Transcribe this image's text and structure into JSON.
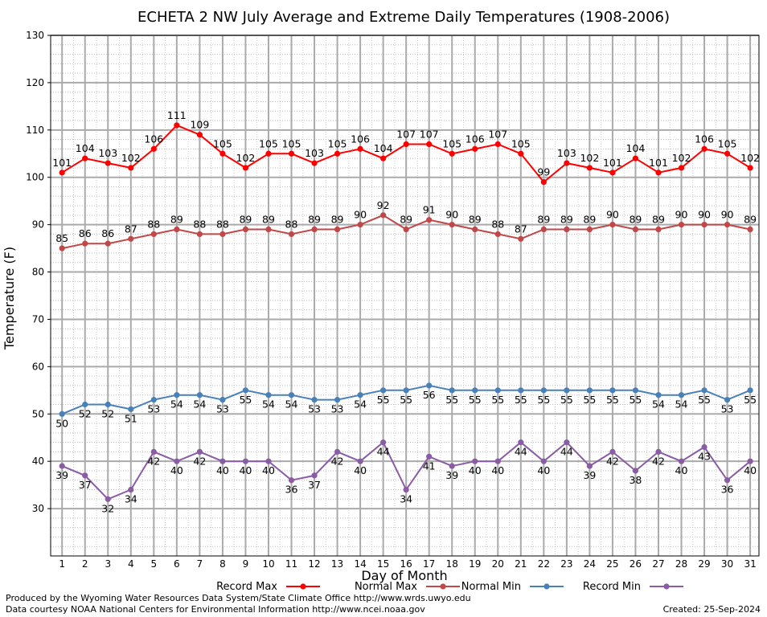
{
  "chart_data": {
    "type": "line",
    "title": "ECHETA 2 NW July Average and Extreme Daily Temperatures (1908-2006)",
    "xlabel": "Day of Month",
    "ylabel": "Temperature (F)",
    "ylim": [
      20,
      130
    ],
    "y_ticks": [
      30,
      40,
      50,
      60,
      70,
      80,
      90,
      100,
      110,
      120,
      130
    ],
    "x": [
      1,
      2,
      3,
      4,
      5,
      6,
      7,
      8,
      9,
      10,
      11,
      12,
      13,
      14,
      15,
      16,
      17,
      18,
      19,
      20,
      21,
      22,
      23,
      24,
      25,
      26,
      27,
      28,
      29,
      30,
      31
    ],
    "grid": true,
    "legend_placement": "bottom",
    "series": [
      {
        "name": "Record Max",
        "color": "#ff0000",
        "values": [
          101,
          104,
          103,
          102,
          106,
          111,
          109,
          105,
          102,
          105,
          105,
          103,
          105,
          106,
          104,
          107,
          107,
          105,
          106,
          107,
          105,
          99,
          103,
          102,
          101,
          104,
          101,
          102,
          106,
          105,
          102
        ],
        "label_position": "above"
      },
      {
        "name": "Normal Max",
        "color": "#c04848",
        "values": [
          85,
          86,
          86,
          87,
          88,
          89,
          88,
          88,
          89,
          89,
          88,
          89,
          89,
          90,
          92,
          89,
          91,
          90,
          89,
          88,
          87,
          89,
          89,
          89,
          90,
          89,
          89,
          90,
          90,
          90,
          89
        ],
        "label_position": "above"
      },
      {
        "name": "Normal Min",
        "color": "#4a80b8",
        "values": [
          50,
          52,
          52,
          51,
          53,
          54,
          54,
          53,
          55,
          54,
          54,
          53,
          53,
          54,
          55,
          55,
          56,
          55,
          55,
          55,
          55,
          55,
          55,
          55,
          55,
          55,
          54,
          54,
          55,
          53,
          55
        ],
        "label_position": "below"
      },
      {
        "name": "Record Min",
        "color": "#8a5ca6",
        "values": [
          39,
          37,
          32,
          34,
          42,
          40,
          42,
          40,
          40,
          40,
          36,
          37,
          42,
          40,
          44,
          34,
          41,
          39,
          40,
          40,
          44,
          40,
          44,
          39,
          42,
          38,
          42,
          40,
          43,
          36,
          40
        ],
        "label_position": "below"
      }
    ]
  },
  "footer": {
    "left_line1": "Produced by the Wyoming Water Resources Data System/State Climate Office http://www.wrds.uwyo.edu",
    "left_line2": "Data courtesy NOAA National Centers for Environmental Information http://www.ncei.noaa.gov",
    "created": "Created:  25-Sep-2024"
  }
}
